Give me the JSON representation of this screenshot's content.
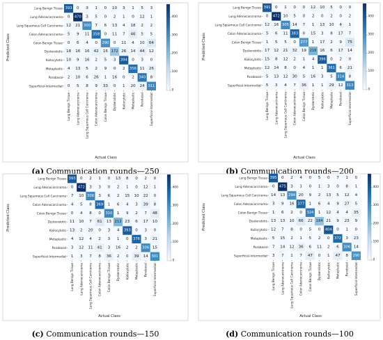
{
  "figure": {
    "panels_caption_suffix": "Communication rounds—"
  },
  "chart_data": [
    {
      "type": "heatmap",
      "panel_letter": "(a)",
      "caption": "Communication rounds—250",
      "xlabel": "Actual Class",
      "ylabel": "Predicted Class",
      "classes": [
        "Lung Benign Tissue",
        "Lung Adenocarcinoma",
        "Lung Squamous Cell Carcinoma",
        "Colon Adenocarcinoma",
        "Colon Benign Tissue",
        "Dyskeratotic",
        "Koilocytotic",
        "Metaplastic",
        "Parabasal",
        "Superficial-Intermediat"
      ],
      "matrix": [
        [
          393,
          0,
          3,
          1,
          0,
          10,
          3,
          1,
          5,
          3
        ],
        [
          0,
          470,
          3,
          5,
          0,
          2,
          1,
          0,
          12,
          1
        ],
        [
          12,
          21,
          300,
          7,
          6,
          13,
          4,
          18,
          2,
          2
        ],
        [
          5,
          9,
          11,
          358,
          0,
          11,
          7,
          46,
          5,
          5
        ],
        [
          0,
          6,
          4,
          0,
          290,
          0,
          11,
          4,
          10,
          64
        ],
        [
          18,
          16,
          16,
          42,
          16,
          172,
          26,
          14,
          44,
          12
        ],
        [
          10,
          9,
          16,
          2,
          5,
          3,
          394,
          0,
          3,
          0
        ],
        [
          4,
          13,
          5,
          2,
          9,
          0,
          2,
          356,
          11,
          26
        ],
        [
          2,
          10,
          6,
          26,
          1,
          16,
          0,
          2,
          340,
          8
        ],
        [
          0,
          5,
          8,
          9,
          33,
          0,
          1,
          20,
          24,
          311
        ]
      ],
      "colorbar": {
        "min": 0,
        "max": 470,
        "ticks": [
          0,
          100,
          200,
          300,
          400
        ]
      }
    },
    {
      "type": "heatmap",
      "panel_letter": "(b)",
      "caption": "Communication rounds—200",
      "xlabel": "Actual Class",
      "ylabel": "Predicted Class",
      "classes": [
        "Lung Benign Tissue",
        "Lung Adenocarcinoma",
        "Lung Squamous Cell Carcinoma",
        "Colon Adenocarcinoma",
        "Colon Benign Tissue",
        "Dyskeratotic",
        "Koilocytotic",
        "Metaplastic",
        "Parabasal",
        "Superficial-Intermediat"
      ],
      "matrix": [
        [
          391,
          0,
          1,
          0,
          0,
          12,
          10,
          5,
          0,
          0
        ],
        [
          0,
          472,
          10,
          5,
          0,
          2,
          0,
          2,
          0,
          2
        ],
        [
          12,
          16,
          305,
          14,
          7,
          1,
          13,
          10,
          4,
          1
        ],
        [
          5,
          6,
          11,
          383,
          0,
          15,
          3,
          8,
          17,
          7
        ],
        [
          1,
          5,
          5,
          0,
          277,
          1,
          17,
          2,
          9,
          75
        ],
        [
          17,
          12,
          21,
          32,
          19,
          216,
          16,
          6,
          17,
          14
        ],
        [
          15,
          8,
          12,
          2,
          1,
          4,
          396,
          0,
          2,
          0
        ],
        [
          12,
          14,
          8,
          0,
          4,
          1,
          1,
          361,
          6,
          21
        ],
        [
          5,
          13,
          12,
          30,
          5,
          16,
          3,
          5,
          314,
          8
        ],
        [
          5,
          3,
          4,
          7,
          36,
          1,
          1,
          29,
          12,
          313
        ]
      ],
      "colorbar": {
        "min": 0,
        "max": 472,
        "ticks": [
          0,
          100,
          200,
          300,
          400
        ]
      }
    },
    {
      "type": "heatmap",
      "panel_letter": "(c)",
      "caption": "Communication rounds—150",
      "xlabel": "Actual Class",
      "ylabel": "Predicted Class",
      "classes": [
        "Lung Benign Tissue",
        "Lung Adenocarcinoma",
        "Lung Squamous Cell Carcinoma",
        "Colon Adenocarcinoma",
        "Colon Benign Tissue",
        "Dyskeratotic",
        "Koilocytotic",
        "Metaplastic",
        "Parabasal",
        "Superficial-Intermediat"
      ],
      "matrix": [
        [
          393,
          0,
          2,
          1,
          0,
          13,
          8,
          0,
          2,
          0
        ],
        [
          0,
          472,
          3,
          3,
          0,
          2,
          1,
          0,
          12,
          1
        ],
        [
          7,
          10,
          308,
          3,
          6,
          2,
          15,
          10,
          22,
          0
        ],
        [
          4,
          5,
          8,
          369,
          1,
          6,
          4,
          3,
          39,
          8
        ],
        [
          0,
          4,
          8,
          0,
          310,
          1,
          9,
          2,
          7,
          48
        ],
        [
          11,
          10,
          7,
          61,
          13,
          212,
          23,
          6,
          17,
          10
        ],
        [
          13,
          2,
          20,
          0,
          3,
          4,
          393,
          0,
          3,
          0
        ],
        [
          4,
          12,
          4,
          2,
          3,
          1,
          0,
          376,
          3,
          21
        ],
        [
          3,
          12,
          11,
          41,
          3,
          16,
          2,
          2,
          306,
          15
        ],
        [
          1,
          3,
          7,
          8,
          36,
          2,
          0,
          39,
          14,
          301
        ]
      ],
      "colorbar": {
        "min": 0,
        "max": 472,
        "ticks": [
          0,
          100,
          200,
          300,
          400
        ]
      }
    },
    {
      "type": "heatmap",
      "panel_letter": "(d)",
      "caption": "Communication rounds—100",
      "xlabel": "Actual Class",
      "ylabel": "Predicted Class",
      "classes": [
        "Lung Benign Tissue",
        "Lung Adenocarcinoma",
        "Lung Squamous Cell Carcinoma",
        "Colon Adenocarcinoma",
        "Colon Benign Tissue",
        "Dyskeratotic",
        "Koilocytotic",
        "Metaplastic",
        "Parabasal",
        "Superficial-Intermediat"
      ],
      "matrix": [
        [
          395,
          0,
          2,
          4,
          0,
          5,
          0,
          7,
          1,
          0
        ],
        [
          0,
          475,
          3,
          1,
          0,
          1,
          3,
          0,
          8,
          1
        ],
        [
          14,
          13,
          294,
          20,
          9,
          2,
          13,
          5,
          12,
          4
        ],
        [
          3,
          9,
          16,
          377,
          1,
          6,
          4,
          9,
          27,
          5
        ],
        [
          1,
          6,
          2,
          0,
          324,
          1,
          12,
          4,
          4,
          35
        ],
        [
          13,
          13,
          10,
          66,
          22,
          184,
          21,
          9,
          23,
          9
        ],
        [
          12,
          7,
          8,
          0,
          5,
          0,
          404,
          0,
          1,
          0
        ],
        [
          5,
          15,
          2,
          1,
          5,
          2,
          0,
          372,
          3,
          23
        ],
        [
          7,
          14,
          12,
          36,
          6,
          11,
          2,
          6,
          306,
          14
        ],
        [
          3,
          7,
          1,
          7,
          47,
          0,
          1,
          47,
          8,
          290
        ]
      ],
      "colorbar": {
        "min": 0,
        "max": 475,
        "ticks": [
          0,
          100,
          200,
          300,
          400
        ]
      }
    }
  ]
}
